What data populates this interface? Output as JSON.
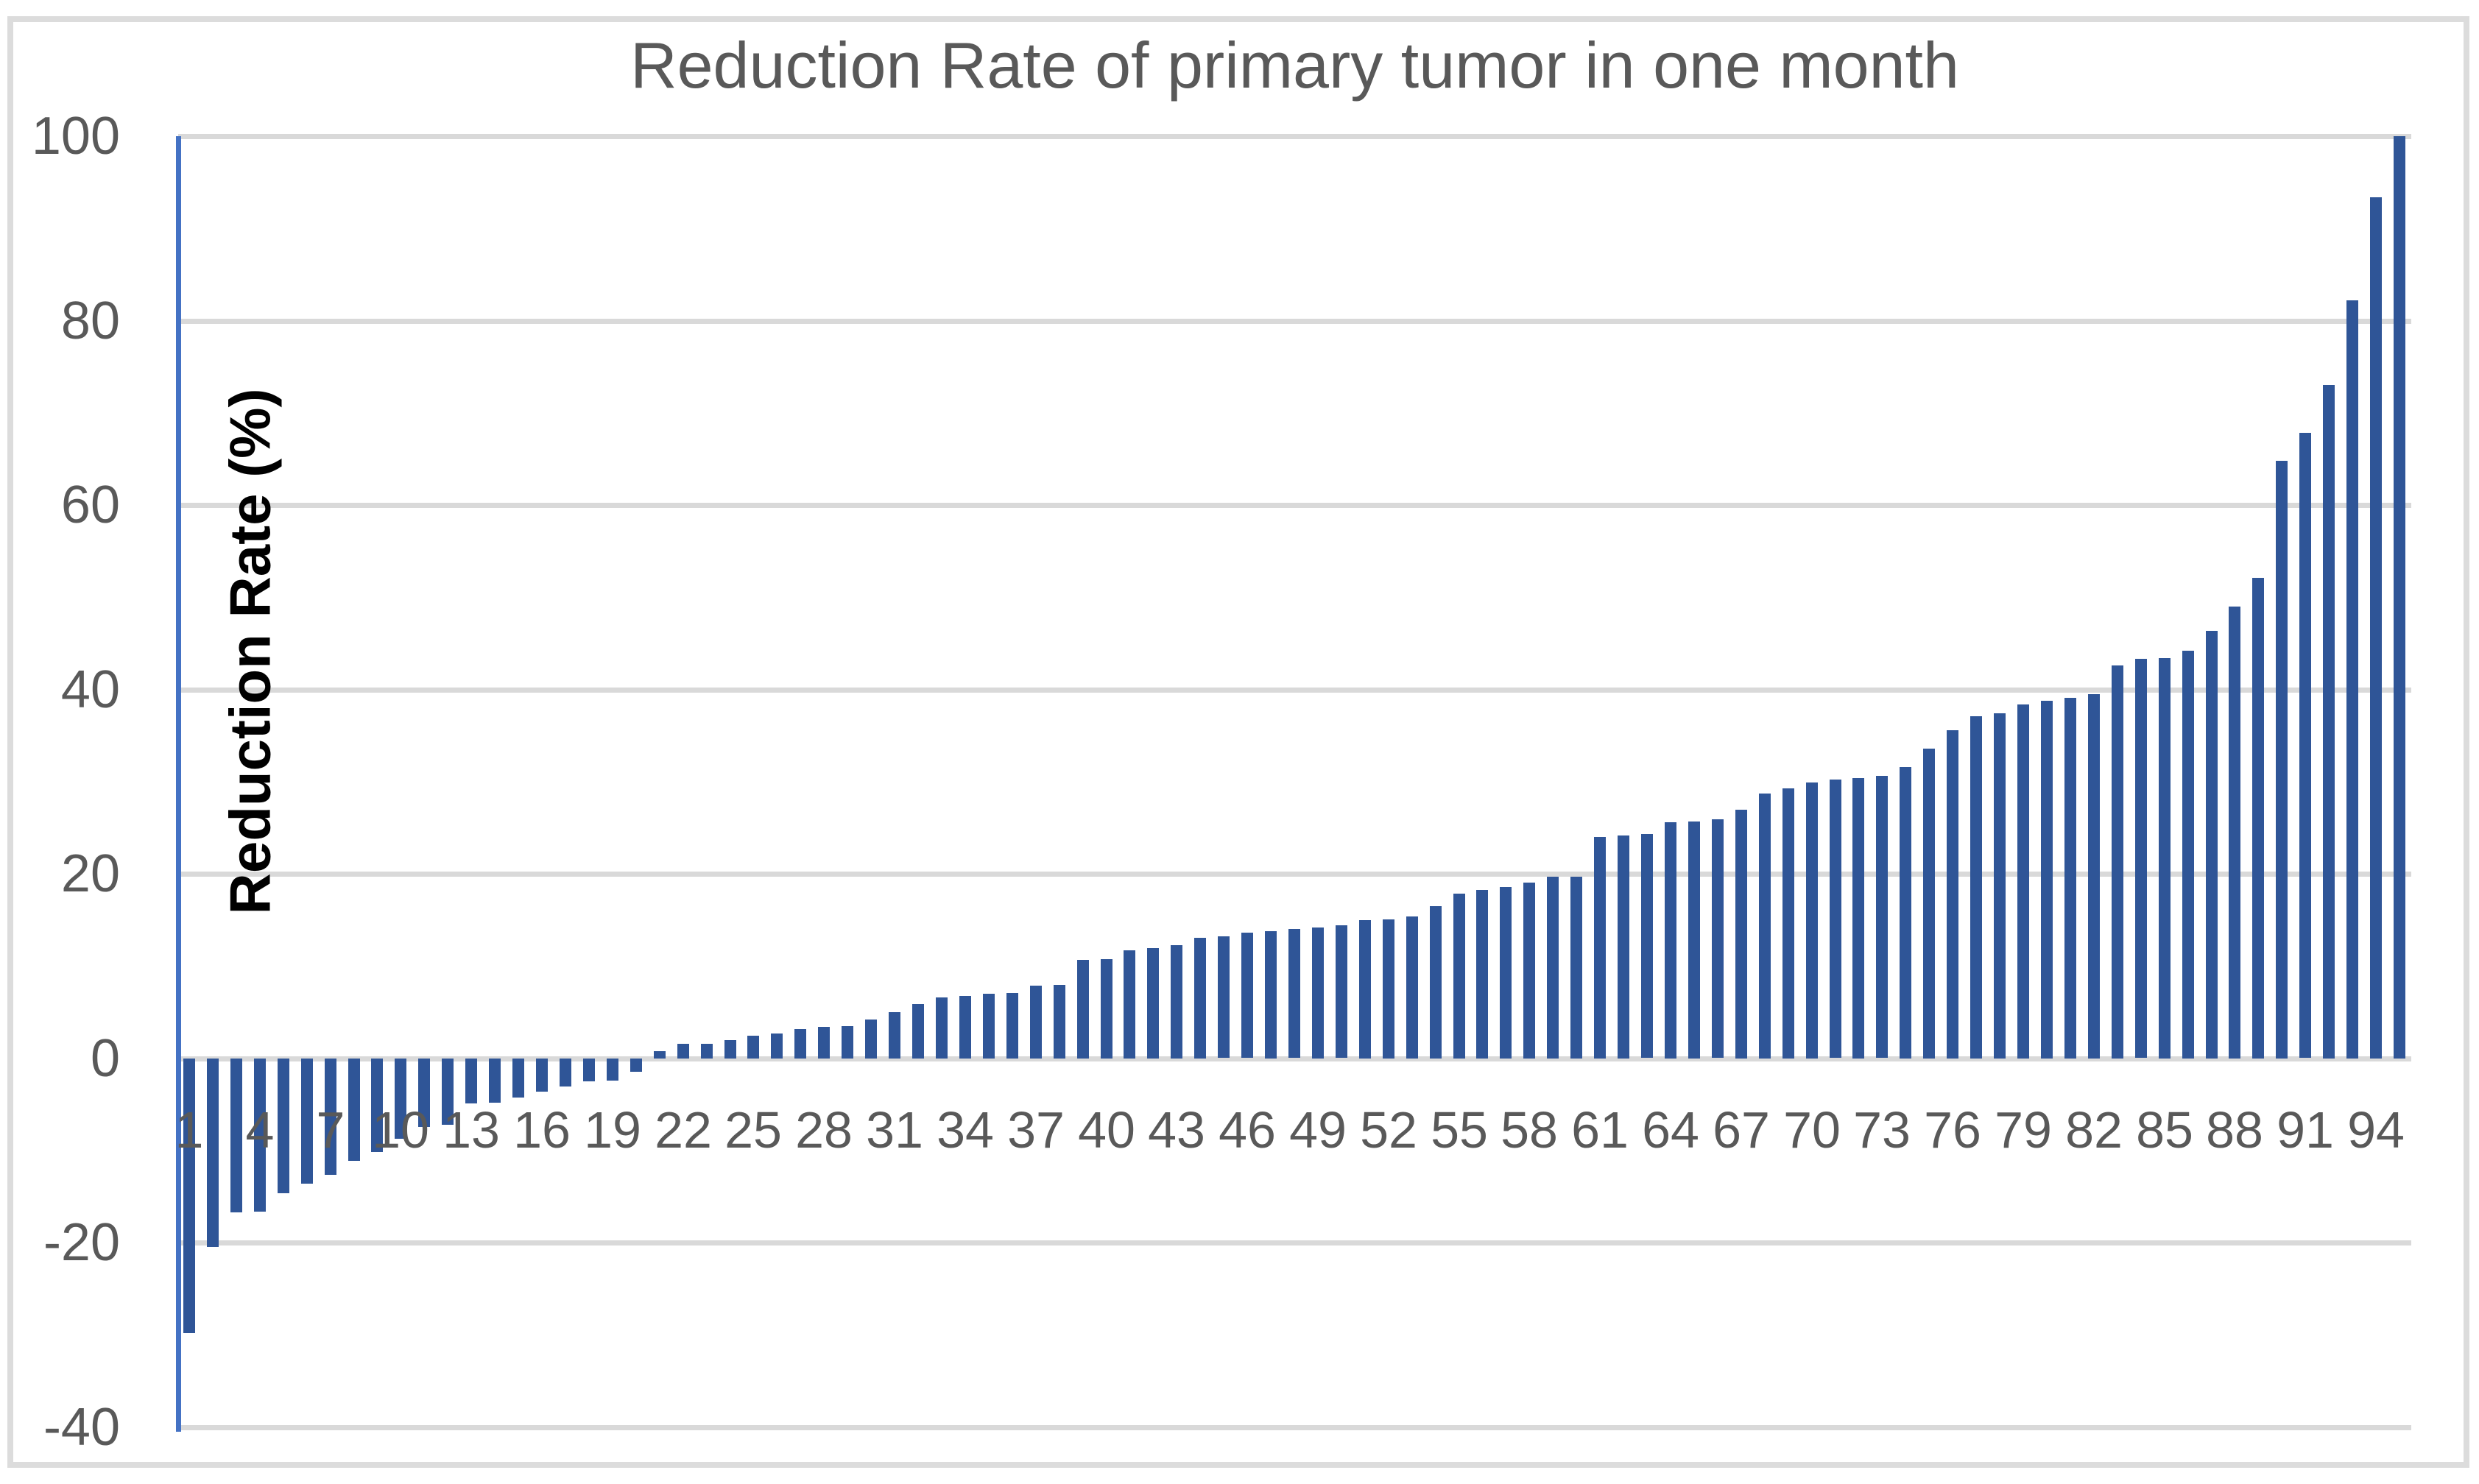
{
  "chart_data": {
    "type": "bar",
    "title": "Reduction Rate of primary tumor in one month",
    "ylabel": "Reduction Rate (%)",
    "xlabel": "",
    "ylim": [
      -40,
      100
    ],
    "ytick_step": 20,
    "yticks": [
      100,
      80,
      60,
      40,
      20,
      0,
      -20,
      -40
    ],
    "grid": true,
    "legend": "none",
    "n_bars": 95,
    "x": [
      1,
      2,
      3,
      4,
      5,
      6,
      7,
      8,
      9,
      10,
      11,
      12,
      13,
      14,
      15,
      16,
      17,
      18,
      19,
      20,
      21,
      22,
      23,
      24,
      25,
      26,
      27,
      28,
      29,
      30,
      31,
      32,
      33,
      34,
      35,
      36,
      37,
      38,
      39,
      40,
      41,
      42,
      43,
      44,
      45,
      46,
      47,
      48,
      49,
      50,
      51,
      52,
      53,
      54,
      55,
      56,
      57,
      58,
      59,
      60,
      61,
      62,
      63,
      64,
      65,
      66,
      67,
      68,
      69,
      70,
      71,
      72,
      73,
      74,
      75,
      76,
      77,
      78,
      79,
      80,
      81,
      82,
      83,
      84,
      85,
      86,
      87,
      88,
      89,
      90,
      91,
      92,
      93,
      94,
      95
    ],
    "values": [
      -29.8,
      -20.4,
      -16.7,
      -16.6,
      -14.6,
      -13.6,
      -12.6,
      -11.1,
      -10.1,
      -8.7,
      -7.4,
      -7.2,
      -4.9,
      -4.8,
      -4.2,
      -3.6,
      -3.0,
      -2.5,
      -2.4,
      -1.4,
      0.8,
      1.6,
      1.6,
      2.0,
      2.5,
      2.7,
      3.2,
      3.4,
      3.5,
      4.2,
      5.0,
      5.9,
      6.6,
      6.8,
      7.0,
      7.1,
      7.9,
      8.0,
      10.7,
      10.8,
      11.7,
      12.0,
      12.3,
      13.1,
      13.2,
      13.6,
      13.8,
      14.0,
      14.2,
      14.4,
      15.0,
      15.1,
      15.4,
      16.5,
      17.9,
      18.3,
      18.6,
      19.1,
      19.7,
      19.7,
      24.0,
      24.2,
      24.3,
      25.6,
      25.7,
      25.9,
      27.0,
      28.7,
      29.3,
      29.9,
      30.2,
      30.4,
      30.6,
      31.6,
      33.6,
      35.6,
      37.1,
      37.4,
      38.4,
      38.8,
      39.1,
      39.5,
      42.6,
      43.3,
      43.4,
      44.2,
      46.4,
      49.0,
      52.1,
      64.8,
      67.8,
      73.0,
      82.2,
      93.4,
      100.0
    ],
    "x_tick_labels": [
      "1",
      "4",
      "7",
      "10",
      "13",
      "16",
      "19",
      "22",
      "25",
      "28",
      "31",
      "34",
      "37",
      "40",
      "43",
      "46",
      "49",
      "52",
      "55",
      "58",
      "61",
      "64",
      "67",
      "70",
      "73",
      "76",
      "79",
      "82",
      "85",
      "88",
      "91",
      "94"
    ],
    "x_tick_step": 3,
    "colors": {
      "bar": "#2F5597",
      "axis_line": "#4472C4",
      "gridline": "#D9D9D9",
      "frame_border": "#DCDCDC",
      "tick_text": "#595959",
      "title_text": "#595959",
      "y_axis_title_text": "#000000",
      "background": "#FFFFFF"
    }
  }
}
